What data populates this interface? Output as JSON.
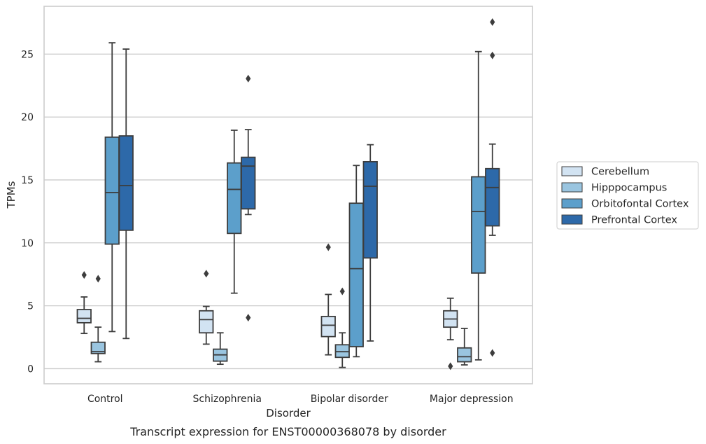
{
  "caption": "Transcript expression for ENST00000368078 by disorder",
  "chart_data": {
    "type": "boxplot",
    "xlabel": "Disorder",
    "ylabel": "TPMs",
    "ylim": [
      -1.2,
      28.8
    ],
    "yticks": [
      0,
      5,
      10,
      15,
      20,
      25
    ],
    "grid": "horizontal",
    "legend_position": "right",
    "categories": [
      "Control",
      "Schizophrenia",
      "Bipolar disorder",
      "Major depression"
    ],
    "series": [
      {
        "name": "Cerebellum",
        "color": "#d2e3f2",
        "boxes": [
          {
            "whisker_low": 2.8,
            "q1": 3.65,
            "median": 4.0,
            "q3": 4.7,
            "whisker_high": 5.7,
            "outliers": [
              7.45
            ]
          },
          {
            "whisker_low": 1.95,
            "q1": 2.85,
            "median": 3.9,
            "q3": 4.6,
            "whisker_high": 4.95,
            "outliers": [
              7.55
            ]
          },
          {
            "whisker_low": 1.1,
            "q1": 2.55,
            "median": 3.45,
            "q3": 4.15,
            "whisker_high": 5.9,
            "outliers": [
              9.65
            ]
          },
          {
            "whisker_low": 2.3,
            "q1": 3.3,
            "median": 3.95,
            "q3": 4.6,
            "whisker_high": 5.6,
            "outliers": [
              0.2
            ]
          }
        ]
      },
      {
        "name": "Hipppocampus",
        "color": "#9ac5e0",
        "boxes": [
          {
            "whisker_low": 0.55,
            "q1": 1.2,
            "median": 1.35,
            "q3": 2.1,
            "whisker_high": 3.3,
            "outliers": [
              7.15
            ]
          },
          {
            "whisker_low": 0.35,
            "q1": 0.6,
            "median": 1.1,
            "q3": 1.55,
            "whisker_high": 2.85,
            "outliers": []
          },
          {
            "whisker_low": 0.1,
            "q1": 0.9,
            "median": 1.35,
            "q3": 1.9,
            "whisker_high": 2.85,
            "outliers": [
              6.15
            ]
          },
          {
            "whisker_low": 0.3,
            "q1": 0.55,
            "median": 0.95,
            "q3": 1.65,
            "whisker_high": 3.2,
            "outliers": []
          }
        ]
      },
      {
        "name": "Orbitofontal Cortex",
        "color": "#5c9fcb",
        "boxes": [
          {
            "whisker_low": 2.95,
            "q1": 9.9,
            "median": 14.0,
            "q3": 18.4,
            "whisker_high": 25.9,
            "outliers": []
          },
          {
            "whisker_low": 6.0,
            "q1": 10.75,
            "median": 14.25,
            "q3": 16.35,
            "whisker_high": 18.95,
            "outliers": []
          },
          {
            "whisker_low": 0.95,
            "q1": 1.75,
            "median": 7.95,
            "q3": 13.15,
            "whisker_high": 16.15,
            "outliers": []
          },
          {
            "whisker_low": 0.7,
            "q1": 7.6,
            "median": 12.5,
            "q3": 15.25,
            "whisker_high": 25.2,
            "outliers": []
          }
        ]
      },
      {
        "name": "Prefrontal Cortex",
        "color": "#2d69a9",
        "boxes": [
          {
            "whisker_low": 2.4,
            "q1": 11.0,
            "median": 14.55,
            "q3": 18.5,
            "whisker_high": 25.4,
            "outliers": []
          },
          {
            "whisker_low": 12.25,
            "q1": 12.7,
            "median": 16.1,
            "q3": 16.8,
            "whisker_high": 19.0,
            "outliers": [
              4.05,
              23.05
            ]
          },
          {
            "whisker_low": 2.2,
            "q1": 8.8,
            "median": 14.5,
            "q3": 16.45,
            "whisker_high": 17.8,
            "outliers": []
          },
          {
            "whisker_low": 10.6,
            "q1": 11.35,
            "median": 14.4,
            "q3": 15.9,
            "whisker_high": 17.85,
            "outliers": [
              1.25,
              24.9,
              27.55
            ]
          }
        ]
      }
    ]
  }
}
